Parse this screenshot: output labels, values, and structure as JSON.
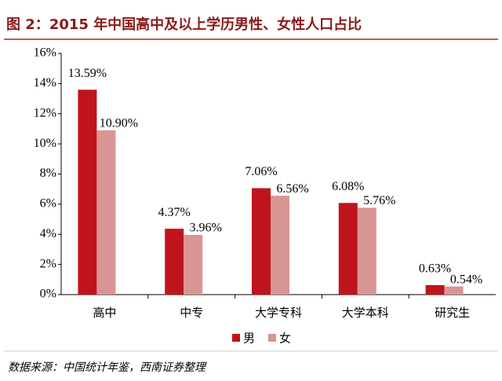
{
  "chart_data": {
    "type": "bar",
    "title": "图 2：2015 年中国高中及以上学历男性、女性人口占比",
    "source": "数据来源：中国统计年鉴，西南证券整理",
    "categories": [
      "高中",
      "中专",
      "大学专科",
      "大学本科",
      "研究生"
    ],
    "series": [
      {
        "name": "男",
        "color": "#c0141c",
        "values": [
          13.59,
          4.37,
          7.06,
          6.08,
          0.63
        ],
        "value_labels": [
          "13.59%",
          "4.37%",
          "7.06%",
          "6.08%",
          "0.63%"
        ]
      },
      {
        "name": "女",
        "color": "#d99594",
        "values": [
          10.9,
          3.96,
          6.56,
          5.76,
          0.54
        ],
        "value_labels": [
          "10.90%",
          "3.96%",
          "6.56%",
          "5.76%",
          "0.54%"
        ]
      }
    ],
    "ylim": [
      0,
      16
    ],
    "yticks": [
      {
        "value": 0,
        "label": "0%"
      },
      {
        "value": 2,
        "label": "2%"
      },
      {
        "value": 4,
        "label": "4%"
      },
      {
        "value": 6,
        "label": "6%"
      },
      {
        "value": 8,
        "label": "8%"
      },
      {
        "value": 10,
        "label": "10%"
      },
      {
        "value": 12,
        "label": "12%"
      },
      {
        "value": 14,
        "label": "14%"
      },
      {
        "value": 16,
        "label": "16%"
      }
    ],
    "legend": "bottom"
  }
}
